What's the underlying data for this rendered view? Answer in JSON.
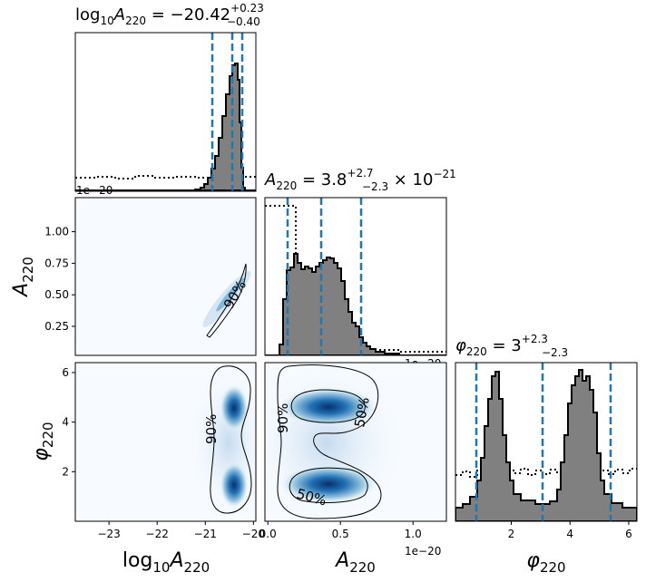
{
  "figure": {
    "titles": {
      "logA": {
        "base": "log",
        "base_sub": "10",
        "var": "A",
        "var_sub": "220",
        "eq": " = −20.42",
        "sup": "+0.23",
        "sub": "−0.40"
      },
      "A": {
        "var": "A",
        "var_sub": "220",
        "eq": " = 3.8",
        "sup": "+2.7",
        "sub": "−2.3",
        "tail": " × 10",
        "tail_sup": "−21"
      },
      "phi": {
        "var": "φ",
        "var_sub": "220",
        "eq": " = 3",
        "sup": "+2.3",
        "sub": "−2.3"
      }
    },
    "xlabels": {
      "logA": {
        "base": "log",
        "base_sub": "10",
        "var": "A",
        "var_sub": "220"
      },
      "A": {
        "var": "A",
        "var_sub": "220"
      },
      "phi": {
        "var": "φ",
        "var_sub": "220"
      }
    },
    "ylabels": {
      "A": {
        "var": "A",
        "var_sub": "220"
      },
      "phi": {
        "var": "φ",
        "var_sub": "220"
      }
    },
    "offset_texts": {
      "top_panel": "1e−20",
      "middle_panel": "1e−20",
      "bottom_axis": "1e−20"
    },
    "contour_labels": {
      "logA_A": "90%",
      "logA_phi": "90%",
      "A_phi_90": "90%",
      "A_phi_50_upper": "50%",
      "A_phi_50_lower": "50%"
    },
    "colors": {
      "hist_fill": "#808080",
      "hist_edge": "#000000",
      "quantile_line": "#1f77b4",
      "prior_line": "#000000",
      "density_low": "#f7fbff",
      "density_high": "#08306b"
    }
  },
  "chart_data": [
    {
      "type": "area",
      "panel": "marginal log10 A220",
      "x_range": [
        -23.7,
        -19.95
      ],
      "quantiles": [
        -20.82,
        -20.42,
        -20.19
      ],
      "posterior_peak": -20.3,
      "posterior_support": [
        -21.2,
        -20.1
      ],
      "prior": "flat (dotted)"
    },
    {
      "type": "area",
      "panel": "marginal A220",
      "x_range": [
        0,
        1.25
      ],
      "x_scale": "1e-20",
      "quantiles": [
        0.15,
        0.38,
        0.65
      ],
      "hist_x": [
        0.15,
        0.2,
        0.25,
        0.3,
        0.35,
        0.4,
        0.45,
        0.5,
        0.55,
        0.6,
        0.65,
        0.7,
        0.75,
        0.8
      ],
      "hist_density": [
        0.7,
        0.8,
        0.68,
        0.66,
        0.68,
        0.7,
        0.76,
        0.7,
        0.58,
        0.42,
        0.26,
        0.1,
        0.05,
        0.02
      ],
      "prior": "dotted step, high below 0.2, low above"
    },
    {
      "type": "area",
      "panel": "marginal phi220",
      "x_range": [
        0.1,
        6.28
      ],
      "x_ticks": [
        2,
        4,
        6
      ],
      "quantiles": [
        0.75,
        3.0,
        5.3
      ],
      "modes": [
        1.4,
        4.5
      ],
      "prior": "flat (dotted)"
    },
    {
      "type": "heatmap",
      "panel": "A220 vs log10 A220",
      "x_ticks": [
        -23,
        -22,
        -21,
        -20
      ],
      "y_ticks": [
        0.25,
        0.5,
        0.75,
        1.0
      ],
      "y_range": [
        0,
        1.25
      ],
      "contours": [
        "90%"
      ]
    },
    {
      "type": "heatmap",
      "panel": "phi220 vs log10 A220",
      "x_ticks": [
        -23,
        -22,
        -21,
        -20
      ],
      "y_ticks": [
        2,
        4,
        6
      ],
      "modes": [
        [
          -20.38,
          4.5
        ],
        [
          -20.38,
          1.4
        ]
      ],
      "contours": [
        "90%"
      ]
    },
    {
      "type": "heatmap",
      "panel": "phi220 vs A220",
      "x_ticks": [
        0.0,
        0.5,
        1.0
      ],
      "x_scale": "1e-20",
      "y_ticks": [
        2,
        4,
        6
      ],
      "modes": [
        [
          0.45,
          4.5
        ],
        [
          0.45,
          1.4
        ]
      ],
      "contours": [
        "90%",
        "50%"
      ]
    }
  ]
}
